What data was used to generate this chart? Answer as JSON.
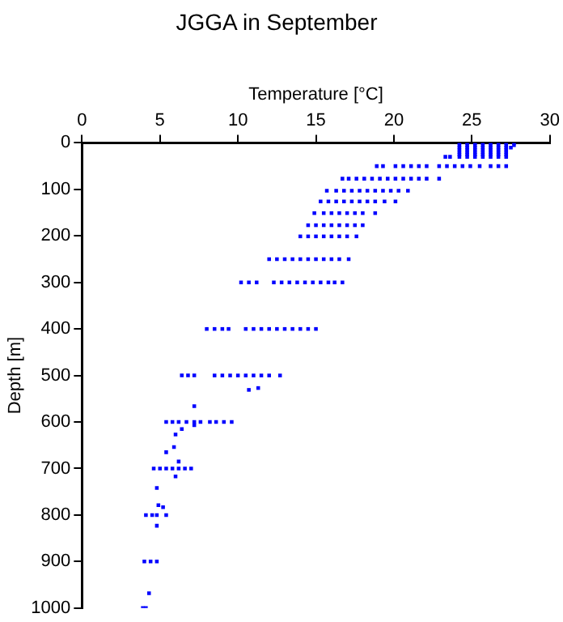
{
  "chart_data": {
    "type": "scatter",
    "title": "JGGA in September",
    "xlabel": "Temperature [°C]",
    "ylabel": "Depth [m]",
    "xlim": [
      0,
      30
    ],
    "xticks": [
      0,
      5,
      10,
      15,
      20,
      25,
      30
    ],
    "ylim": [
      1000,
      0
    ],
    "yticks": [
      0,
      100,
      200,
      300,
      400,
      500,
      600,
      700,
      800,
      900,
      1000
    ],
    "grid": false,
    "legend": false,
    "marker": "square",
    "series": [
      {
        "color": "#0000ff",
        "x": [
          24.2,
          24.7,
          25.2,
          25.7,
          26.2,
          26.7,
          27.2,
          27.7,
          24.2,
          24.7,
          25.2,
          25.7,
          26.2,
          26.7,
          27.2,
          27.7,
          24.2,
          24.7,
          25.2,
          25.7,
          26.2,
          26.7,
          27.2,
          27.5,
          24.2,
          24.7,
          25.2,
          25.7,
          26.2,
          26.7,
          27.2,
          24.2,
          24.7,
          25.2,
          25.7,
          26.2,
          26.7,
          27.2,
          24.2,
          24.7,
          25.2,
          25.7,
          26.2,
          26.7,
          27.2,
          23.3,
          23.6,
          24.2,
          24.7,
          25.2,
          25.7,
          26.2,
          26.7,
          27.2,
          18.9,
          19.3,
          20.1,
          20.6,
          21.1,
          21.6,
          22.1,
          22.9,
          23.4,
          23.9,
          24.4,
          24.9,
          25.5,
          26.2,
          26.7,
          27.2,
          16.7,
          17.1,
          17.6,
          18.1,
          18.6,
          19.1,
          19.6,
          20.1,
          20.6,
          21.1,
          21.6,
          22.1,
          22.9,
          15.7,
          16.3,
          16.8,
          17.3,
          17.8,
          18.3,
          18.8,
          19.3,
          19.8,
          20.3,
          20.9,
          15.3,
          15.8,
          16.3,
          16.8,
          17.3,
          17.8,
          18.3,
          18.8,
          19.4,
          20.1,
          14.9,
          15.5,
          16,
          16.5,
          17,
          17.5,
          18,
          18.8,
          14.5,
          15,
          15.5,
          16,
          16.5,
          17,
          17.5,
          18,
          14,
          14.5,
          15,
          15.5,
          16,
          16.5,
          17,
          17.6,
          12,
          12.5,
          13,
          13.5,
          14,
          14.5,
          15,
          15.5,
          16,
          16.5,
          17.1,
          10.2,
          10.7,
          11.2,
          12.3,
          12.8,
          13.3,
          13.8,
          14.3,
          14.8,
          15.3,
          15.8,
          16.2,
          16.7,
          8,
          8.5,
          9,
          9.4,
          10.5,
          11,
          11.5,
          12,
          12.5,
          13,
          13.5,
          14,
          14.5,
          15,
          6.4,
          6.8,
          7.2,
          8.5,
          9,
          9.5,
          10,
          10.5,
          11,
          11.5,
          12,
          12.7,
          11.3,
          10.7,
          7.2,
          5.4,
          5.8,
          6.2,
          6.7,
          7.2,
          7.6,
          8.2,
          8.6,
          9.1,
          9.6,
          7.2,
          6.4,
          6.0,
          5.9,
          5.4,
          6.2,
          4.6,
          5,
          5.4,
          5.8,
          6.2,
          6.6,
          7,
          6.0,
          4.8,
          4.9,
          5.2,
          4.1,
          4.5,
          4.8,
          5.4,
          4.8,
          4,
          4.4,
          4.8,
          4.3,
          3.9,
          4.1
        ],
        "values": [
          0,
          0,
          0,
          0,
          0,
          0,
          0,
          0,
          5,
          5,
          5,
          5,
          5,
          5,
          5,
          5,
          10,
          10,
          10,
          10,
          10,
          10,
          10,
          10,
          15,
          15,
          15,
          15,
          15,
          15,
          15,
          20,
          20,
          20,
          20,
          20,
          20,
          20,
          25,
          25,
          25,
          25,
          25,
          25,
          25,
          30,
          30,
          30,
          30,
          30,
          30,
          30,
          30,
          30,
          50,
          50,
          50,
          50,
          50,
          50,
          50,
          50,
          50,
          50,
          50,
          50,
          50,
          50,
          50,
          50,
          77,
          77,
          77,
          77,
          77,
          77,
          77,
          77,
          77,
          77,
          77,
          77,
          77,
          103,
          103,
          103,
          103,
          103,
          103,
          103,
          103,
          103,
          103,
          103,
          126,
          126,
          126,
          126,
          126,
          126,
          126,
          126,
          126,
          126,
          151,
          151,
          151,
          151,
          151,
          151,
          151,
          151,
          177,
          177,
          177,
          177,
          177,
          177,
          177,
          177,
          201,
          201,
          201,
          201,
          201,
          201,
          201,
          201,
          250,
          250,
          250,
          250,
          250,
          250,
          250,
          250,
          250,
          250,
          250,
          300,
          300,
          300,
          300,
          300,
          300,
          300,
          300,
          300,
          300,
          300,
          300,
          300,
          400,
          400,
          400,
          400,
          400,
          400,
          400,
          400,
          400,
          400,
          400,
          400,
          400,
          400,
          500,
          500,
          500,
          500,
          500,
          500,
          500,
          500,
          500,
          500,
          500,
          500,
          527,
          531,
          566,
          600,
          600,
          600,
          600,
          600,
          600,
          600,
          600,
          600,
          600,
          607,
          615,
          627,
          654,
          665,
          685,
          700,
          700,
          700,
          700,
          700,
          700,
          700,
          717,
          742,
          779,
          783,
          800,
          800,
          800,
          800,
          823,
          900,
          900,
          900,
          968,
          1000,
          1000
        ]
      }
    ]
  }
}
